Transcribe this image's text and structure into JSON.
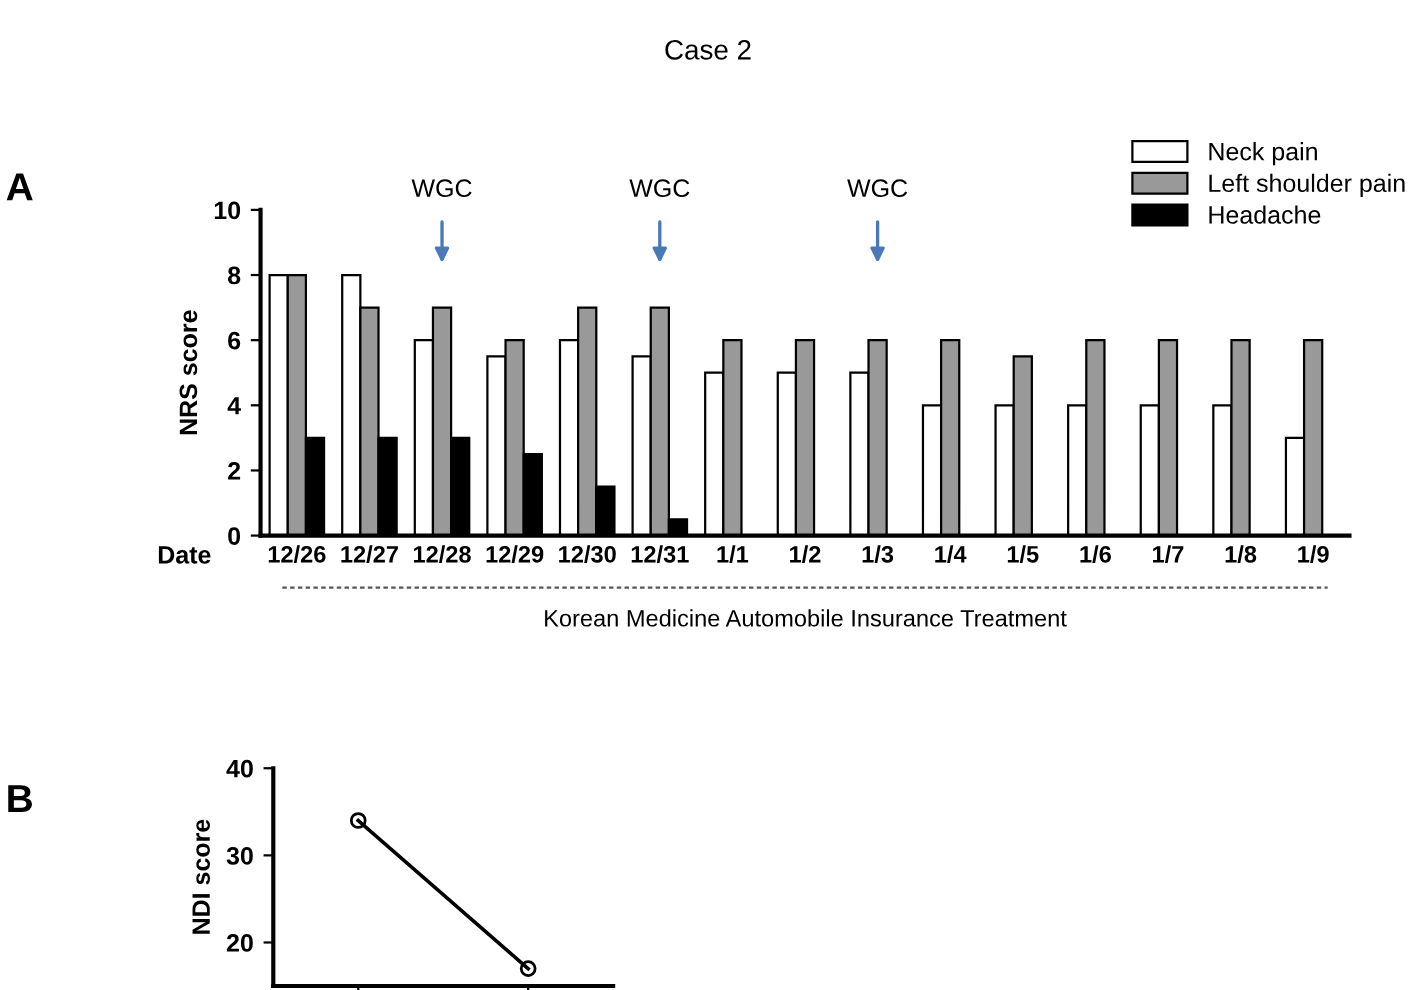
{
  "chart_data": [
    {
      "type": "bar",
      "title": "Case 2",
      "xlabel": "Date",
      "ylabel": "NRS score",
      "categories": [
        "12/26",
        "12/27",
        "12/28",
        "12/29",
        "12/30",
        "12/31",
        "1/1",
        "1/2",
        "1/3",
        "1/4",
        "1/5",
        "1/6",
        "1/7",
        "1/8",
        "1/9"
      ],
      "series": [
        {
          "name": "Neck pain",
          "color": "#ffffff",
          "values": [
            8,
            8,
            6,
            5.5,
            6,
            5.5,
            5,
            5,
            5,
            4,
            4,
            4,
            4,
            4,
            3
          ]
        },
        {
          "name": "Left shoulder pain",
          "color": "#999999",
          "values": [
            8,
            7,
            7,
            6,
            7,
            7,
            6,
            6,
            6,
            6,
            5.5,
            6,
            6,
            6,
            6
          ]
        },
        {
          "name": "Headache",
          "color": "#000000",
          "values": [
            3,
            3,
            3,
            2.5,
            1.5,
            0.5,
            null,
            null,
            null,
            null,
            null,
            null,
            null,
            null,
            null
          ]
        }
      ],
      "ylim": [
        0,
        10
      ],
      "yticks": [
        0,
        2,
        4,
        6,
        8,
        10
      ],
      "legend": "top right",
      "grid": false,
      "annotations": [
        "A",
        {
          "text": "WGC",
          "x": "12/28"
        },
        {
          "text": "WGC",
          "x": "12/31"
        },
        {
          "text": "WGC",
          "x": "1/3"
        },
        "Korean Medicine Automobile Insurance Treatment"
      ]
    },
    {
      "type": "line",
      "ylabel": "NDI score",
      "categories": [
        null,
        null
      ],
      "series": [
        {
          "color": "#000000",
          "values": [
            34,
            17
          ]
        }
      ],
      "ylim": [
        15,
        40
      ],
      "yticks": [
        20,
        30,
        40
      ],
      "marker": "circle",
      "line_style": "solid",
      "tick_labels": "y",
      "grid": false,
      "annotations": [
        "B"
      ]
    }
  ]
}
